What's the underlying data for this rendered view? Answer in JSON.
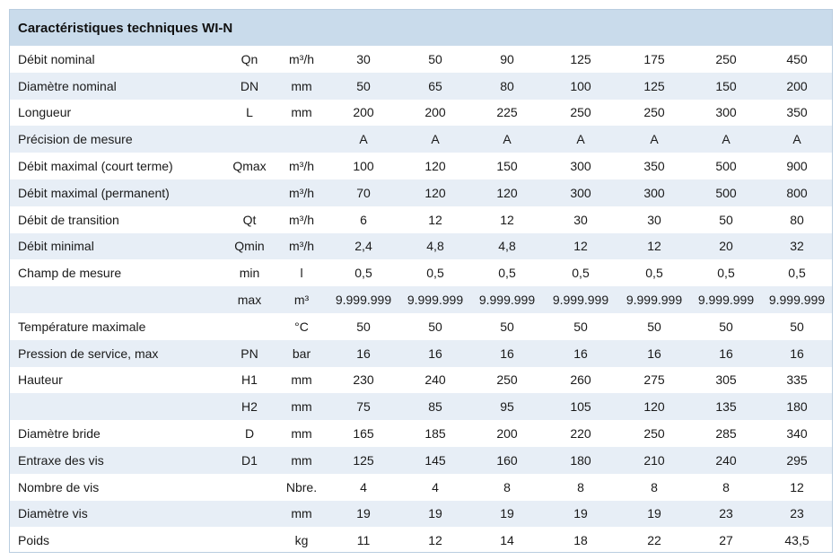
{
  "title": "Caractéristiques techniques WI-N",
  "rows": [
    {
      "label": "Débit nominal",
      "symbol": "Qn",
      "unit": "m³/h",
      "values": [
        "30",
        "50",
        "90",
        "125",
        "175",
        "250",
        "450"
      ]
    },
    {
      "label": "Diamètre nominal",
      "symbol": "DN",
      "unit": "mm",
      "values": [
        "50",
        "65",
        "80",
        "100",
        "125",
        "150",
        "200"
      ]
    },
    {
      "label": "Longueur",
      "symbol": "L",
      "unit": "mm",
      "values": [
        "200",
        "200",
        "225",
        "250",
        "250",
        "300",
        "350"
      ]
    },
    {
      "label": "Précision de mesure",
      "symbol": "",
      "unit": "",
      "values": [
        "A",
        "A",
        "A",
        "A",
        "A",
        "A",
        "A"
      ]
    },
    {
      "label": "Débit maximal (court terme)",
      "symbol": "Qmax",
      "unit": "m³/h",
      "values": [
        "100",
        "120",
        "150",
        "300",
        "350",
        "500",
        "900"
      ]
    },
    {
      "label": "Débit maximal (permanent)",
      "symbol": "",
      "unit": "m³/h",
      "values": [
        "70",
        "120",
        "120",
        "300",
        "300",
        "500",
        "800"
      ]
    },
    {
      "label": "Débit de transition",
      "symbol": "Qt",
      "unit": "m³/h",
      "values": [
        "6",
        "12",
        "12",
        "30",
        "30",
        "50",
        "80"
      ]
    },
    {
      "label": "Débit minimal",
      "symbol": "Qmin",
      "unit": "m³/h",
      "values": [
        "2,4",
        "4,8",
        "4,8",
        "12",
        "12",
        "20",
        "32"
      ]
    },
    {
      "label": "Champ de mesure",
      "symbol": "min",
      "unit": "l",
      "values": [
        "0,5",
        "0,5",
        "0,5",
        "0,5",
        "0,5",
        "0,5",
        "0,5"
      ]
    },
    {
      "label": "",
      "symbol": "max",
      "unit": "m³",
      "values": [
        "9.999.999",
        "9.999.999",
        "9.999.999",
        "9.999.999",
        "9.999.999",
        "9.999.999",
        "9.999.999"
      ]
    },
    {
      "label": "Température maximale",
      "symbol": "",
      "unit": "°C",
      "values": [
        "50",
        "50",
        "50",
        "50",
        "50",
        "50",
        "50"
      ]
    },
    {
      "label": "Pression de service, max",
      "symbol": "PN",
      "unit": "bar",
      "values": [
        "16",
        "16",
        "16",
        "16",
        "16",
        "16",
        "16"
      ]
    },
    {
      "label": "Hauteur",
      "symbol": "H1",
      "unit": "mm",
      "values": [
        "230",
        "240",
        "250",
        "260",
        "275",
        "305",
        "335"
      ]
    },
    {
      "label": "",
      "symbol": "H2",
      "unit": "mm",
      "values": [
        "75",
        "85",
        "95",
        "105",
        "120",
        "135",
        "180"
      ]
    },
    {
      "label": "Diamètre bride",
      "symbol": "D",
      "unit": "mm",
      "values": [
        "165",
        "185",
        "200",
        "220",
        "250",
        "285",
        "340"
      ]
    },
    {
      "label": "Entraxe des vis",
      "symbol": "D1",
      "unit": "mm",
      "values": [
        "125",
        "145",
        "160",
        "180",
        "210",
        "240",
        "295"
      ]
    },
    {
      "label": "Nombre de vis",
      "symbol": "",
      "unit": "Nbre.",
      "values": [
        "4",
        "4",
        "8",
        "8",
        "8",
        "8",
        "12"
      ]
    },
    {
      "label": "Diamètre vis",
      "symbol": "",
      "unit": "mm",
      "values": [
        "19",
        "19",
        "19",
        "19",
        "19",
        "23",
        "23"
      ]
    },
    {
      "label": "Poids",
      "symbol": "",
      "unit": "kg",
      "values": [
        "11",
        "12",
        "14",
        "18",
        "22",
        "27",
        "43,5"
      ]
    }
  ]
}
